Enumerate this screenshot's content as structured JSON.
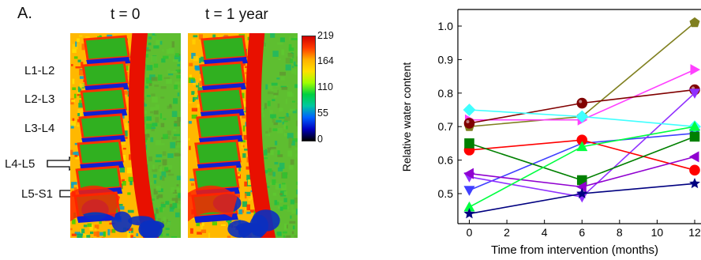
{
  "figure": {
    "panel_letter": "A.",
    "titles": [
      "t = 0",
      "t = 1 year"
    ],
    "levels": [
      "L1-L2",
      "L2-L3",
      "L3-L4",
      "L4-L5",
      "L5-S1"
    ],
    "colorbar_ticks": [
      "219",
      "164",
      "110",
      "55",
      "0"
    ],
    "colorbar_stops": [
      "#d10000",
      "#ff3a00",
      "#ffb000",
      "#ffe000",
      "#a0ff00",
      "#00d040",
      "#00c8a0",
      "#0060ff",
      "#0000c0",
      "#000000"
    ]
  },
  "chart_data": {
    "type": "line",
    "xlabel": "Time from intervention (months)",
    "ylabel": "Relative water content",
    "xlim": [
      0,
      12
    ],
    "ylim": [
      0.43,
      1.05
    ],
    "xticks": [
      0,
      2,
      4,
      6,
      8,
      10,
      12
    ],
    "yticks": [
      0.5,
      0.6,
      0.7,
      0.8,
      0.9,
      1.0
    ],
    "x": [
      0,
      6,
      12
    ],
    "series": [
      {
        "color": "#808020",
        "marker": "pentagon",
        "values": [
          0.7,
          0.73,
          1.01
        ]
      },
      {
        "color": "#ff40ff",
        "marker": "triangle-right",
        "values": [
          0.72,
          0.72,
          0.87
        ]
      },
      {
        "color": "#800000",
        "marker": "sphere",
        "values": [
          0.71,
          0.77,
          0.81
        ]
      },
      {
        "color": "#4040ff",
        "marker": "triangle-down",
        "values": [
          0.51,
          0.65,
          0.68
        ]
      },
      {
        "color": "#9030ff",
        "marker": "triangle-down",
        "values": [
          0.55,
          0.49,
          0.8
        ]
      },
      {
        "color": "#40ffff",
        "marker": "diamond",
        "values": [
          0.75,
          0.73,
          0.7
        ]
      },
      {
        "color": "#ff0000",
        "marker": "circle",
        "values": [
          0.63,
          0.66,
          0.57
        ]
      },
      {
        "color": "#008000",
        "marker": "square",
        "values": [
          0.65,
          0.54,
          0.67
        ]
      },
      {
        "color": "#9000d0",
        "marker": "triangle-left",
        "values": [
          0.56,
          0.52,
          0.61
        ]
      },
      {
        "color": "#00ff40",
        "marker": "triangle-up",
        "values": [
          0.46,
          0.64,
          0.7
        ]
      },
      {
        "color": "#000080",
        "marker": "star",
        "values": [
          0.44,
          0.5,
          0.53
        ]
      }
    ]
  }
}
